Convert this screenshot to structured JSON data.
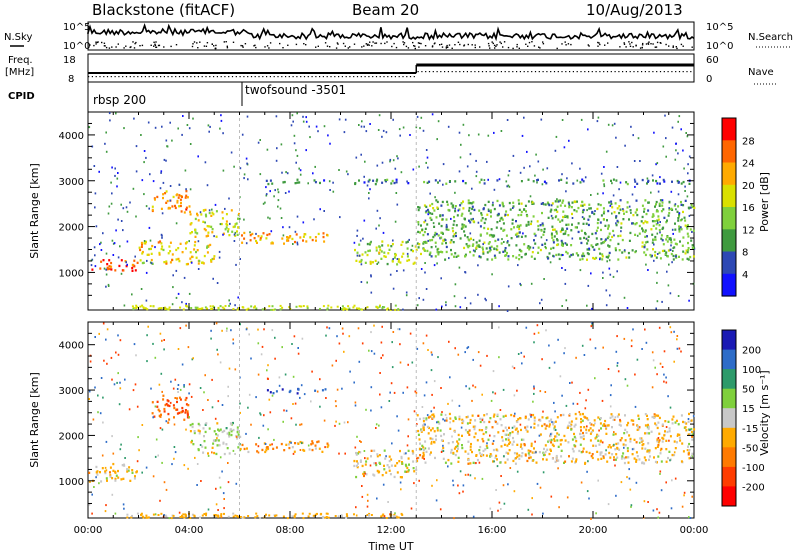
{
  "header": {
    "radar": "Blackstone (fitACF)",
    "beam": "Beam 20",
    "date": "10/Aug/2013"
  },
  "summary": {
    "nsky_label": "N.Sky",
    "nsearch_label": "N.Search",
    "freq_label_line1": "Freq.",
    "freq_label_line2": "[MHz]",
    "nave_label": "Nave",
    "cpid_label": "CPID",
    "noise_ticks": [
      "10^5",
      "10^0"
    ],
    "freq_ticks": [
      "18",
      "8"
    ],
    "nave_ticks": [
      "60",
      "0"
    ],
    "cpid_segments": [
      {
        "start_hour": 0,
        "label": "rbsp 200"
      },
      {
        "start_hour": 6,
        "label": "twofsound -3501"
      }
    ]
  },
  "axes": {
    "xlabel": "Time UT",
    "ylabel": "Slant Range [km]",
    "x_ticks": [
      "00:00",
      "04:00",
      "08:00",
      "12:00",
      "16:00",
      "20:00",
      "00:00"
    ],
    "y_ticks": [
      "1000",
      "2000",
      "3000",
      "4000"
    ]
  },
  "power_scale": {
    "label": "Power [dB]",
    "ticks": [
      "28",
      "24",
      "20",
      "16",
      "12",
      "8",
      "4"
    ],
    "colors": [
      "#ff0000",
      "#ff6600",
      "#ffaa00",
      "#d9e000",
      "#7fd03c",
      "#3f9a3f",
      "#2d48b4",
      "#1111ff"
    ]
  },
  "velocity_scale": {
    "label": "Velocity [m s⁻¹]",
    "ticks": [
      "200",
      "100",
      "50",
      "15",
      "-15",
      "-50",
      "-100",
      "-200"
    ],
    "colors": [
      "#1a1ab4",
      "#2d6cc8",
      "#2d9a6a",
      "#7fd03c",
      "#c8c8c8",
      "#ffaa00",
      "#ff7a00",
      "#ff3c00",
      "#ff0000"
    ]
  },
  "chart_data": {
    "type": "heatmap",
    "x_range_hours": [
      0,
      24
    ],
    "y_range_km": [
      180,
      4500
    ],
    "frequency_mhz": {
      "00:00-13:00": 10,
      "13:00-24:00": 10.5
    },
    "nave": {
      "00:00-13:00": 25,
      "13:00-24:00": 40
    },
    "power_echo_bands": [
      {
        "hours": [
          0,
          2
        ],
        "range_km": [
          1050,
          1300
        ],
        "power_db": 28
      },
      {
        "hours": [
          2,
          5
        ],
        "range_km": [
          1200,
          1700
        ],
        "power_db": 20
      },
      {
        "hours": [
          2.5,
          4
        ],
        "range_km": [
          2300,
          2800
        ],
        "power_db": 24
      },
      {
        "hours": [
          4,
          6
        ],
        "range_km": [
          1800,
          2400
        ],
        "power_db": 18
      },
      {
        "hours": [
          6,
          9.5
        ],
        "range_km": [
          1650,
          1900
        ],
        "power_db": 22
      },
      {
        "hours": [
          7,
          9.5
        ],
        "range_km": [
          2950,
          3050
        ],
        "power_db": 8
      },
      {
        "hours": [
          10.5,
          13
        ],
        "range_km": [
          1200,
          1700
        ],
        "power_db": 16
      },
      {
        "hours": [
          10.5,
          24
        ],
        "range_km": [
          2950,
          3050
        ],
        "power_db": 8
      },
      {
        "hours": [
          13,
          24
        ],
        "range_km": [
          1300,
          2600
        ],
        "power_db": 12
      }
    ],
    "velocity_echo_bands": [
      {
        "hours": [
          0,
          2
        ],
        "range_km": [
          1000,
          1400
        ],
        "velocity_ms": -15
      },
      {
        "hours": [
          2.5,
          4
        ],
        "range_km": [
          2300,
          2900
        ],
        "velocity_ms": -100
      },
      {
        "hours": [
          4,
          6
        ],
        "range_km": [
          1600,
          2300
        ],
        "velocity_ms": 15
      },
      {
        "hours": [
          6,
          9.5
        ],
        "range_km": [
          1650,
          1900
        ],
        "velocity_ms": -50
      },
      {
        "hours": [
          7,
          9.5
        ],
        "range_km": [
          2950,
          3050
        ],
        "velocity_ms": 200
      },
      {
        "hours": [
          10.5,
          13
        ],
        "range_km": [
          1100,
          1700
        ],
        "velocity_ms": -15
      },
      {
        "hours": [
          13,
          24
        ],
        "range_km": [
          1400,
          2500
        ],
        "velocity_ms": -15
      }
    ]
  }
}
